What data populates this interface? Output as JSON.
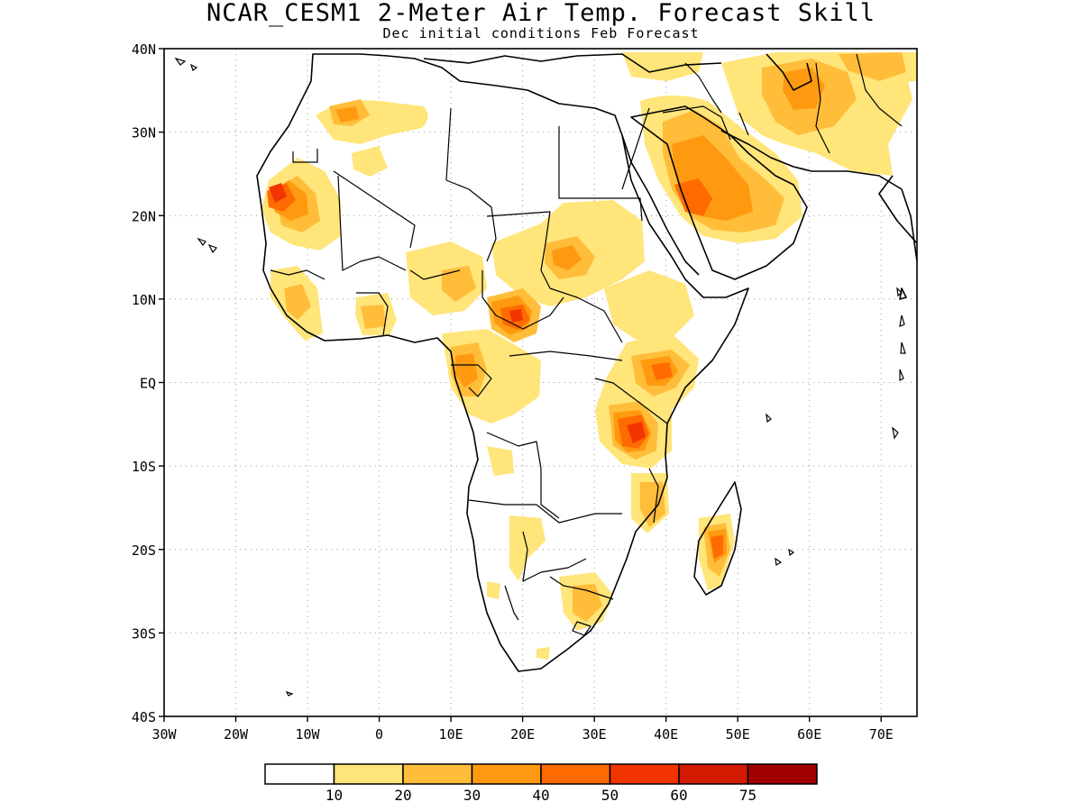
{
  "title": "NCAR_CESM1 2-Meter Air Temp. Forecast Skill",
  "subtitle": "Dec initial conditions  Feb Forecast",
  "map": {
    "region": "Africa and Arabian Peninsula",
    "lon_range": [
      -30,
      75
    ],
    "lat_range": [
      -40,
      40
    ],
    "lat_tick_labels": [
      "40N",
      "30N",
      "20N",
      "10N",
      "EQ",
      "10S",
      "20S",
      "30S",
      "40S"
    ],
    "lon_tick_labels": [
      "30W",
      "20W",
      "10W",
      "0",
      "10E",
      "20E",
      "30E",
      "40E",
      "50E",
      "60E",
      "70E"
    ],
    "gridlines": "dotted",
    "skill_regions": [
      {
        "area": "Western Sahara / Mauritania coast",
        "peak_level": "50-60"
      },
      {
        "area": "Central African Republic / Chad",
        "peak_level": "40-50"
      },
      {
        "area": "Tanzania",
        "peak_level": "50-60"
      },
      {
        "area": "Kenya / Somalia",
        "peak_level": "40-50"
      },
      {
        "area": "Madagascar",
        "peak_level": "40-50"
      },
      {
        "area": "Saudi Arabia",
        "peak_level": "40-50"
      },
      {
        "area": "Iran",
        "peak_level": "30-40"
      },
      {
        "area": "Sudan",
        "peak_level": "30-40"
      },
      {
        "area": "Morocco / Algeria",
        "peak_level": "30-40"
      }
    ]
  },
  "colorbar": {
    "boundaries": [
      "10",
      "20",
      "30",
      "40",
      "50",
      "60",
      "75"
    ],
    "colors": [
      "#ffffff",
      "#ffe57a",
      "#ffbd3a",
      "#ff9a10",
      "#ff6b00",
      "#f13400",
      "#d21a00",
      "#a00000"
    ]
  }
}
